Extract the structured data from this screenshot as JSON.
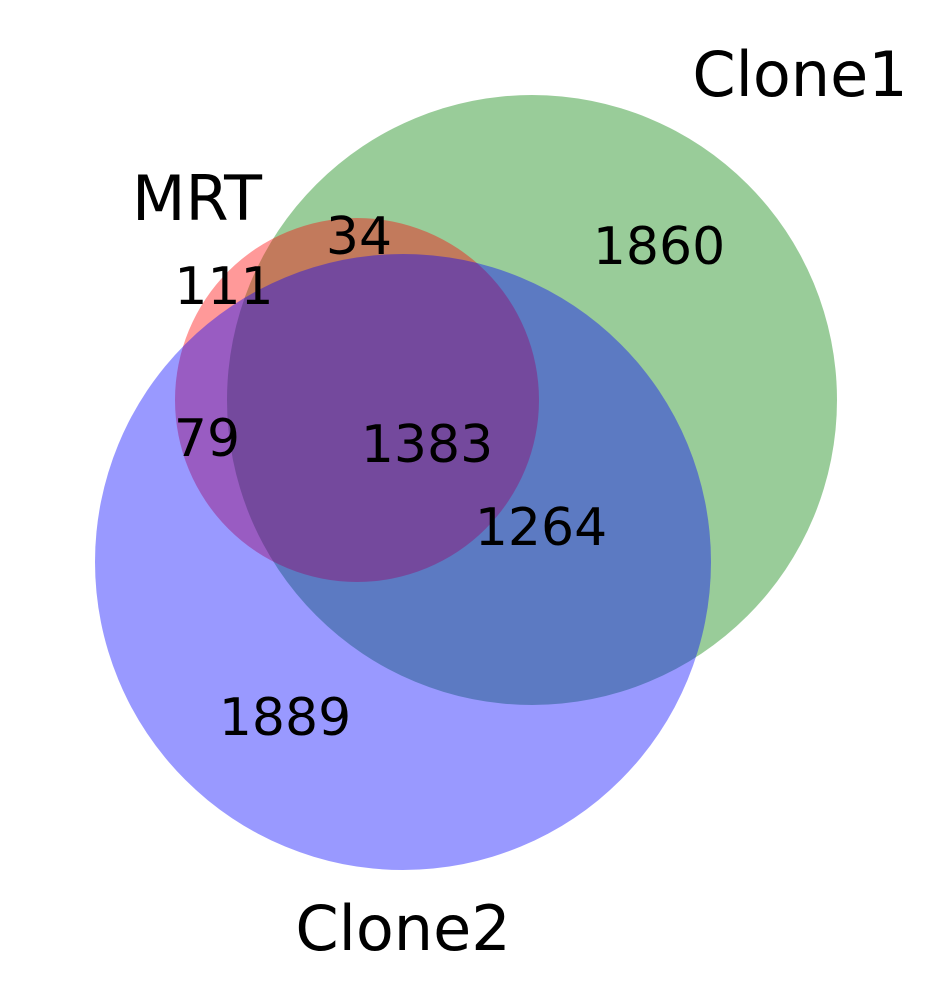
{
  "sets": [
    {
      "key": "mrt",
      "name": "MRT",
      "color": "#ff0000"
    },
    {
      "key": "clone1",
      "name": "Clone1",
      "color": "#008000"
    },
    {
      "key": "clone2",
      "name": "Clone2",
      "color": "#0000ff"
    }
  ],
  "regions": {
    "mrt_only": "111",
    "clone1_only": "1860",
    "clone2_only": "1889",
    "mrt_clone1": "34",
    "mrt_clone2": "79",
    "clone1_clone2": "1264",
    "all_three": "1383"
  }
}
